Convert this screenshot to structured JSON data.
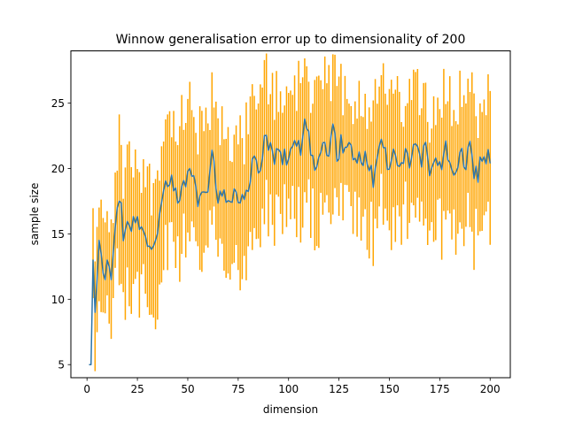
{
  "chart_data": {
    "type": "line",
    "title": "Winnow generalisation error up to dimensionality of 200",
    "xlabel": "dimension",
    "ylabel": "sample size",
    "xlim": [
      -8,
      210
    ],
    "ylim": [
      4,
      29
    ],
    "xticks": [
      0,
      25,
      50,
      75,
      100,
      125,
      150,
      175,
      200
    ],
    "yticks": [
      5,
      10,
      15,
      20,
      25
    ],
    "grid": false,
    "legend": "none",
    "colors": {
      "mean_line": "#2e75a8",
      "error_bars": "#ffa500"
    },
    "series": [
      {
        "kind": "mean-with-error-bars",
        "anchors": [
          [
            1,
            5.0
          ],
          [
            2,
            5.0
          ],
          [
            3,
            13.0
          ],
          [
            4,
            9.0
          ],
          [
            5,
            11.5
          ],
          [
            6,
            14.5
          ],
          [
            7,
            13.5
          ],
          [
            8,
            12.0
          ],
          [
            9,
            11.5
          ],
          [
            10,
            13.0
          ],
          [
            11,
            12.5
          ],
          [
            12,
            11.5
          ],
          [
            13,
            13.5
          ],
          [
            14,
            15.5
          ],
          [
            15,
            17.0
          ],
          [
            16,
            17.5
          ],
          [
            17,
            17.5
          ],
          [
            18,
            15.0
          ],
          [
            20,
            16.0
          ],
          [
            22,
            15.5
          ],
          [
            24,
            16.5
          ],
          [
            26,
            15.5
          ],
          [
            28,
            15.8
          ],
          [
            30,
            14.5
          ],
          [
            32,
            13.5
          ],
          [
            35,
            15.5
          ],
          [
            38,
            18.0
          ],
          [
            40,
            18.5
          ],
          [
            42,
            18.8
          ],
          [
            45,
            17.5
          ],
          [
            48,
            18.5
          ],
          [
            50,
            19.5
          ],
          [
            52,
            20.0
          ],
          [
            55,
            17.5
          ],
          [
            58,
            18.5
          ],
          [
            60,
            19.0
          ],
          [
            62,
            22.0
          ],
          [
            64,
            18.5
          ],
          [
            66,
            17.5
          ],
          [
            68,
            18.0
          ],
          [
            70,
            17.5
          ],
          [
            73,
            18.5
          ],
          [
            75,
            17.5
          ],
          [
            78,
            18.0
          ],
          [
            80,
            19.0
          ],
          [
            83,
            20.5
          ],
          [
            85,
            19.5
          ],
          [
            87,
            21.5
          ],
          [
            89,
            22.5
          ],
          [
            91,
            21.5
          ],
          [
            93,
            20.0
          ],
          [
            95,
            22.0
          ],
          [
            97,
            21.0
          ],
          [
            100,
            20.5
          ],
          [
            103,
            22.0
          ],
          [
            106,
            21.5
          ],
          [
            108,
            23.5
          ],
          [
            110,
            22.5
          ],
          [
            112,
            21.0
          ],
          [
            114,
            20.0
          ],
          [
            116,
            21.0
          ],
          [
            118,
            22.0
          ],
          [
            120,
            21.5
          ],
          [
            122,
            23.5
          ],
          [
            124,
            21.0
          ],
          [
            126,
            22.0
          ],
          [
            128,
            21.5
          ],
          [
            130,
            22.5
          ],
          [
            132,
            20.0
          ],
          [
            134,
            21.0
          ],
          [
            136,
            20.5
          ],
          [
            138,
            21.5
          ],
          [
            140,
            20.5
          ],
          [
            142,
            19.0
          ],
          [
            144,
            21.5
          ],
          [
            146,
            22.0
          ],
          [
            148,
            21.0
          ],
          [
            150,
            20.0
          ],
          [
            152,
            21.5
          ],
          [
            154,
            19.5
          ],
          [
            156,
            20.5
          ],
          [
            158,
            21.0
          ],
          [
            160,
            20.5
          ],
          [
            162,
            22.0
          ],
          [
            164,
            21.0
          ],
          [
            166,
            20.5
          ],
          [
            168,
            21.5
          ],
          [
            170,
            20.0
          ],
          [
            172,
            20.5
          ],
          [
            174,
            21.0
          ],
          [
            176,
            20.5
          ],
          [
            178,
            21.5
          ],
          [
            180,
            20.0
          ],
          [
            182,
            19.5
          ],
          [
            184,
            20.5
          ],
          [
            186,
            21.0
          ],
          [
            188,
            20.5
          ],
          [
            190,
            21.5
          ],
          [
            192,
            20.0
          ],
          [
            194,
            19.5
          ],
          [
            196,
            21.0
          ],
          [
            198,
            20.5
          ],
          [
            200,
            21.0
          ]
        ]
      }
    ]
  }
}
